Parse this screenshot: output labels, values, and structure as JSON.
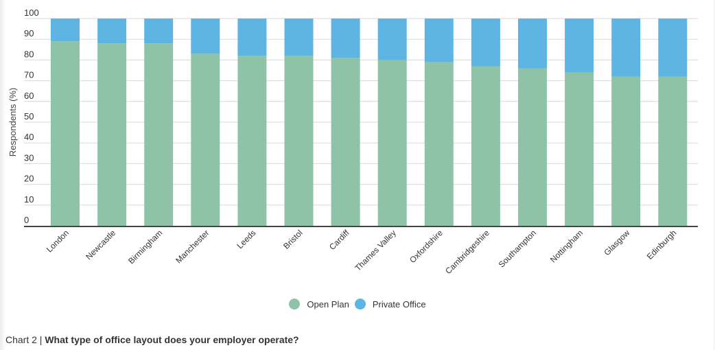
{
  "chart_data": {
    "type": "bar",
    "stacked": true,
    "title": "",
    "xlabel": "",
    "ylabel": "Respondents (%)",
    "ylim": [
      0,
      100
    ],
    "yticks": [
      0,
      10,
      20,
      30,
      40,
      50,
      60,
      70,
      80,
      90,
      100
    ],
    "grid": true,
    "legend_position": "bottom-center",
    "categories": [
      "London",
      "Newcastle",
      "Birmingham",
      "Manchester",
      "Leeds",
      "Bristol",
      "Cardiff",
      "Thames Valley",
      "Oxfordshire",
      "Cambridgeshire",
      "Southampton",
      "Nottingham",
      "Glasgow",
      "Edinburgh"
    ],
    "series": [
      {
        "name": "Open Plan",
        "color": "#8fc3a8",
        "values": [
          89,
          88,
          88,
          83,
          82,
          82,
          81,
          80,
          79,
          77,
          76,
          74,
          72,
          72
        ]
      },
      {
        "name": "Private Office",
        "color": "#5eb5e4",
        "values": [
          11,
          12,
          12,
          17,
          18,
          18,
          19,
          20,
          21,
          23,
          24,
          26,
          28,
          28
        ]
      }
    ]
  },
  "caption": {
    "prefix": "Chart 2 | ",
    "question": "What type of office layout does your employer operate?"
  }
}
